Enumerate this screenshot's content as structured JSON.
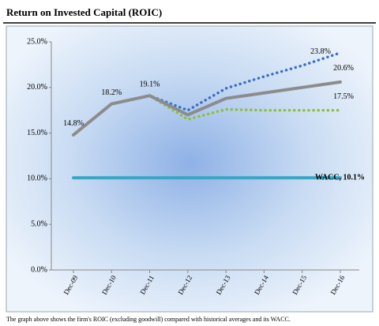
{
  "chart_data": {
    "type": "line",
    "title": "Return on Invested Capital (ROIC)",
    "caption": "The graph above shows the firm's ROIC (excluding goodwill) compared with historical averages and its WACC.",
    "categories": [
      "Dec-09",
      "Dec-10",
      "Dec-11",
      "Dec-12",
      "Dec-13",
      "Dec-14",
      "Dec-15",
      "Dec-16"
    ],
    "series": [
      {
        "color": "#3a6fc4",
        "style": "dotted",
        "values": [
          14.8,
          18.2,
          19.1,
          17.5,
          19.9,
          21.2,
          22.4,
          23.8
        ],
        "value_labels": [
          null,
          null,
          null,
          null,
          null,
          null,
          null,
          "23.8%"
        ]
      },
      {
        "color": "#8c8c8c",
        "style": "solid",
        "values": [
          14.8,
          18.2,
          19.1,
          17.0,
          18.8,
          19.4,
          20.0,
          20.6
        ],
        "value_labels": [
          "14.8%",
          "18.2%",
          "19.1%",
          null,
          null,
          null,
          null,
          "20.6%"
        ]
      },
      {
        "color": "#8fbf3a",
        "style": "dotted",
        "values": [
          14.8,
          18.2,
          19.1,
          16.5,
          17.6,
          17.5,
          17.5,
          17.5
        ],
        "value_labels": [
          null,
          null,
          null,
          null,
          null,
          null,
          null,
          "17.5%"
        ]
      },
      {
        "color": "#3aa6c4",
        "style": "solid",
        "values": [
          10.1,
          10.1,
          10.1,
          10.1,
          10.1,
          10.1,
          10.1,
          10.1
        ],
        "value_labels": [
          null,
          null,
          null,
          null,
          null,
          null,
          null,
          "WACC, 10.1%"
        ]
      }
    ],
    "ylim": [
      0,
      25
    ],
    "yticks": [
      {
        "value": 0,
        "label": "0.0%"
      },
      {
        "value": 5,
        "label": "5.0%"
      },
      {
        "value": 10,
        "label": "10.0%"
      },
      {
        "value": 15,
        "label": "15.0%"
      },
      {
        "value": 20,
        "label": "20.0%"
      },
      {
        "value": 25,
        "label": "25.0%"
      }
    ]
  }
}
